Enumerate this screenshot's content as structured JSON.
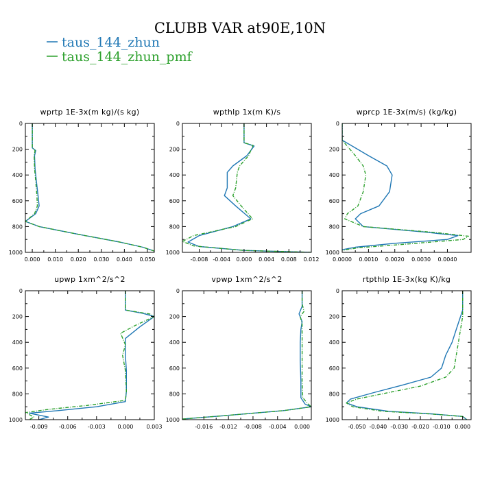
{
  "figure": {
    "title": "CLUBB VAR at90E,10N",
    "legend": [
      {
        "label": "taus_144_zhun",
        "color": "#1f77b4",
        "dash": "none"
      },
      {
        "label": "taus_144_zhun_pmf",
        "color": "#2ca02c",
        "dash": "5,2,1,2"
      }
    ]
  },
  "chart_data": [
    {
      "type": "line",
      "title": "wprtp  1E-3x(m kg)/(s kg)",
      "xlim": [
        -0.003,
        0.053
      ],
      "ylim": [
        0,
        1000
      ],
      "y_inverted": true,
      "xticks": [
        0.0,
        0.01,
        0.02,
        0.03,
        0.04,
        0.05
      ],
      "xtick_labels": [
        "0.000",
        "0.010",
        "0.020",
        "0.030",
        "0.040",
        "0.050"
      ],
      "yticks": [
        0,
        200,
        400,
        600,
        800,
        1000
      ],
      "series": [
        {
          "name": "taus_144_zhun",
          "points": [
            [
              0.0,
              0
            ],
            [
              0.0,
              100
            ],
            [
              0.0,
              190
            ],
            [
              0.0015,
              210
            ],
            [
              0.001,
              250
            ],
            [
              0.0012,
              350
            ],
            [
              0.0018,
              450
            ],
            [
              0.0025,
              560
            ],
            [
              0.003,
              640
            ],
            [
              0.0015,
              700
            ],
            [
              -0.003,
              760
            ],
            [
              0.003,
              800
            ],
            [
              0.02,
              860
            ],
            [
              0.038,
              920
            ],
            [
              0.048,
              960
            ],
            [
              0.053,
              990
            ],
            [
              0.053,
              1000
            ]
          ]
        },
        {
          "name": "taus_144_zhun_pmf",
          "points": [
            [
              0.0,
              0
            ],
            [
              0.0,
              100
            ],
            [
              0.0,
              190
            ],
            [
              0.0012,
              210
            ],
            [
              0.0008,
              250
            ],
            [
              0.001,
              350
            ],
            [
              0.0015,
              450
            ],
            [
              0.002,
              560
            ],
            [
              0.0022,
              640
            ],
            [
              0.001,
              700
            ],
            [
              -0.003,
              760
            ],
            [
              0.003,
              800
            ],
            [
              0.02,
              860
            ],
            [
              0.038,
              920
            ],
            [
              0.048,
              960
            ],
            [
              0.053,
              990
            ],
            [
              0.053,
              1000
            ]
          ]
        }
      ]
    },
    {
      "type": "line",
      "title": "wpthlp  1x(m K)/s",
      "xlim": [
        -0.011,
        0.012
      ],
      "ylim": [
        0,
        1000
      ],
      "y_inverted": true,
      "xticks": [
        -0.008,
        -0.004,
        0.0,
        0.004,
        0.008,
        0.012
      ],
      "xtick_labels": [
        "-0.008",
        "-0.004",
        "0.000",
        "0.004",
        "0.008",
        "0.012"
      ],
      "yticks": [
        0,
        200,
        400,
        600,
        800,
        1000
      ],
      "series": [
        {
          "name": "taus_144_zhun",
          "points": [
            [
              0.0,
              0
            ],
            [
              0.0,
              120
            ],
            [
              0.0,
              150
            ],
            [
              0.0018,
              175
            ],
            [
              0.0005,
              250
            ],
            [
              -0.002,
              330
            ],
            [
              -0.003,
              380
            ],
            [
              -0.003,
              500
            ],
            [
              -0.0035,
              560
            ],
            [
              -0.0015,
              640
            ],
            [
              0.0012,
              740
            ],
            [
              -0.002,
              800
            ],
            [
              -0.008,
              870
            ],
            [
              -0.01,
              920
            ],
            [
              -0.008,
              955
            ],
            [
              0.0,
              985
            ],
            [
              0.012,
              1000
            ]
          ]
        },
        {
          "name": "taus_144_zhun_pmf",
          "points": [
            [
              0.0,
              0
            ],
            [
              0.0,
              120
            ],
            [
              0.0,
              150
            ],
            [
              0.0016,
              170
            ],
            [
              0.0008,
              250
            ],
            [
              -0.0008,
              330
            ],
            [
              -0.0012,
              380
            ],
            [
              -0.0015,
              500
            ],
            [
              -0.002,
              560
            ],
            [
              -0.0005,
              640
            ],
            [
              0.0015,
              740
            ],
            [
              -0.0015,
              800
            ],
            [
              -0.009,
              870
            ],
            [
              -0.011,
              915
            ],
            [
              -0.009,
              950
            ],
            [
              0.0,
              985
            ],
            [
              0.012,
              1000
            ]
          ]
        }
      ]
    },
    {
      "type": "line",
      "title": "wprcp  1E-3x(m/s) (kg/kg)",
      "xlim": [
        0.0,
        0.0049
      ],
      "ylim": [
        0,
        1000
      ],
      "y_inverted": true,
      "xticks": [
        0.0,
        0.001,
        0.002,
        0.003,
        0.004
      ],
      "xtick_labels": [
        "0.0000",
        "0.0010",
        "0.0020",
        "0.0030",
        "0.0040"
      ],
      "yticks": [
        0,
        200,
        400,
        600,
        800,
        1000
      ],
      "series": [
        {
          "name": "taus_144_zhun",
          "points": [
            [
              0.0,
              0
            ],
            [
              0.0,
              130
            ],
            [
              0.001,
              250
            ],
            [
              0.0017,
              330
            ],
            [
              0.0019,
              400
            ],
            [
              0.0018,
              530
            ],
            [
              0.0014,
              640
            ],
            [
              0.0007,
              700
            ],
            [
              0.0005,
              740
            ],
            [
              0.0008,
              800
            ],
            [
              0.003,
              840
            ],
            [
              0.0044,
              870
            ],
            [
              0.004,
              900
            ],
            [
              0.002,
              930
            ],
            [
              0.0005,
              960
            ],
            [
              0.0,
              980
            ]
          ]
        },
        {
          "name": "taus_144_zhun_pmf",
          "points": [
            [
              0.0,
              0
            ],
            [
              0.0,
              130
            ],
            [
              0.0005,
              250
            ],
            [
              0.0008,
              330
            ],
            [
              0.0009,
              400
            ],
            [
              0.0008,
              530
            ],
            [
              0.0006,
              640
            ],
            [
              0.0002,
              700
            ],
            [
              0.0001,
              740
            ],
            [
              0.0008,
              800
            ],
            [
              0.0035,
              845
            ],
            [
              0.0048,
              875
            ],
            [
              0.0046,
              900
            ],
            [
              0.0025,
              935
            ],
            [
              0.0006,
              965
            ],
            [
              0.0,
              985
            ]
          ]
        }
      ]
    },
    {
      "type": "line",
      "title": "upwp  1xm^2/s^2",
      "xlim": [
        -0.0104,
        0.003
      ],
      "ylim": [
        0,
        1000
      ],
      "y_inverted": true,
      "xticks": [
        -0.009,
        -0.006,
        -0.003,
        0.0,
        0.003
      ],
      "xtick_labels": [
        "-0.009",
        "-0.006",
        "-0.003",
        "0.000",
        "0.003"
      ],
      "yticks": [
        0,
        200,
        400,
        600,
        800,
        1000
      ],
      "series": [
        {
          "name": "taus_144_zhun",
          "points": [
            [
              0.0,
              0
            ],
            [
              0.0,
              150
            ],
            [
              0.0018,
              175
            ],
            [
              0.003,
              200
            ],
            [
              0.0015,
              280
            ],
            [
              0.0,
              370
            ],
            [
              0.0,
              500
            ],
            [
              0.0001,
              620
            ],
            [
              0.0001,
              780
            ],
            [
              0.0,
              860
            ],
            [
              -0.003,
              900
            ],
            [
              -0.007,
              930
            ],
            [
              -0.01,
              950
            ],
            [
              -0.008,
              980
            ],
            [
              -0.009,
              1000
            ]
          ]
        },
        {
          "name": "taus_144_zhun_pmf",
          "points": [
            [
              0.0,
              0
            ],
            [
              0.0,
              150
            ],
            [
              0.0025,
              180
            ],
            [
              0.003,
              200
            ],
            [
              0.001,
              270
            ],
            [
              -0.0005,
              330
            ],
            [
              0.0,
              420
            ],
            [
              -0.0003,
              500
            ],
            [
              0.0,
              620
            ],
            [
              0.0001,
              780
            ],
            [
              0.0,
              850
            ],
            [
              -0.004,
              890
            ],
            [
              -0.008,
              920
            ],
            [
              -0.0104,
              945
            ],
            [
              -0.0095,
              980
            ],
            [
              -0.01,
              1000
            ]
          ]
        }
      ]
    },
    {
      "type": "line",
      "title": "vpwp  1xm^2/s^2",
      "xlim": [
        -0.0195,
        0.0015
      ],
      "ylim": [
        0,
        1000
      ],
      "y_inverted": true,
      "xticks": [
        -0.016,
        -0.012,
        -0.008,
        -0.004,
        0.0
      ],
      "xtick_labels": [
        "-0.016",
        "-0.012",
        "-0.008",
        "-0.004",
        "0.000"
      ],
      "yticks": [
        0,
        200,
        400,
        600,
        800,
        1000
      ],
      "series": [
        {
          "name": "taus_144_zhun",
          "points": [
            [
              0.0,
              0
            ],
            [
              0.0,
              120
            ],
            [
              -0.0005,
              180
            ],
            [
              0.0,
              240
            ],
            [
              -0.0002,
              300
            ],
            [
              -0.0003,
              400
            ],
            [
              -0.0003,
              550
            ],
            [
              -0.0002,
              700
            ],
            [
              -0.0002,
              830
            ],
            [
              0.0005,
              880
            ],
            [
              0.0015,
              900
            ],
            [
              -0.003,
              930
            ],
            [
              -0.008,
              950
            ],
            [
              -0.013,
              970
            ],
            [
              -0.0195,
              995
            ]
          ]
        },
        {
          "name": "taus_144_zhun_pmf",
          "points": [
            [
              0.0,
              0
            ],
            [
              0.0,
              100
            ],
            [
              0.0003,
              160
            ],
            [
              -0.0003,
              200
            ],
            [
              0.0,
              260
            ],
            [
              0.0,
              400
            ],
            [
              0.0,
              550
            ],
            [
              0.0,
              700
            ],
            [
              0.0001,
              830
            ],
            [
              0.001,
              880
            ],
            [
              0.0015,
              900
            ],
            [
              -0.003,
              930
            ],
            [
              -0.008,
              950
            ],
            [
              -0.013,
              970
            ],
            [
              -0.0195,
              995
            ]
          ]
        }
      ]
    },
    {
      "type": "line",
      "title": "rtpthlp  1E-3x(kg K)/kg",
      "xlim": [
        -0.057,
        0.004
      ],
      "ylim": [
        0,
        1000
      ],
      "y_inverted": true,
      "xticks": [
        -0.05,
        -0.04,
        -0.03,
        -0.02,
        -0.01,
        0.0
      ],
      "xtick_labels": [
        "-0.050",
        "-0.040",
        "-0.030",
        "-0.020",
        "-0.010",
        "0.000"
      ],
      "yticks": [
        0,
        200,
        400,
        600,
        800,
        1000
      ],
      "series": [
        {
          "name": "taus_144_zhun",
          "points": [
            [
              0.0,
              0
            ],
            [
              0.0,
              150
            ],
            [
              -0.001,
              200
            ],
            [
              -0.003,
              300
            ],
            [
              -0.005,
              400
            ],
            [
              -0.008,
              500
            ],
            [
              -0.01,
              600
            ],
            [
              -0.015,
              670
            ],
            [
              -0.028,
              730
            ],
            [
              -0.042,
              790
            ],
            [
              -0.053,
              840
            ],
            [
              -0.055,
              870
            ],
            [
              -0.05,
              900
            ],
            [
              -0.035,
              935
            ],
            [
              -0.015,
              955
            ],
            [
              0.0,
              975
            ],
            [
              0.002,
              1000
            ]
          ]
        },
        {
          "name": "taus_144_zhun_pmf",
          "points": [
            [
              0.0,
              0
            ],
            [
              0.0,
              150
            ],
            [
              0.0,
              200
            ],
            [
              -0.001,
              300
            ],
            [
              -0.002,
              400
            ],
            [
              -0.003,
              500
            ],
            [
              -0.004,
              600
            ],
            [
              -0.008,
              670
            ],
            [
              -0.02,
              740
            ],
            [
              -0.038,
              800
            ],
            [
              -0.05,
              840
            ],
            [
              -0.055,
              870
            ],
            [
              -0.052,
              900
            ],
            [
              -0.038,
              935
            ],
            [
              -0.016,
              955
            ],
            [
              0.0,
              975
            ],
            [
              0.002,
              1000
            ]
          ]
        }
      ]
    }
  ]
}
